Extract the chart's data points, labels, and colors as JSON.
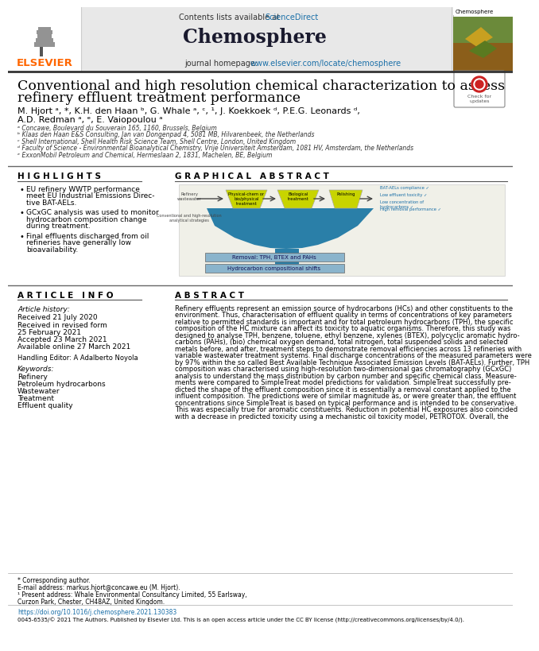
{
  "title": "Chemosphere",
  "contents_text": "Contents lists available at ",
  "sciencedirect_text": "ScienceDirect",
  "paper_title_line1": "Conventional and high resolution chemical characterization to assess",
  "paper_title_line2": "refinery effluent treatment performance",
  "author_line1": "M. Hjort ᵃ, *, K.H. den Haan ᵇ, G. Whale ᵃ, ᶜ, ¹, J. Koekkoek ᵈ, P.E.G. Leonards ᵈ,",
  "author_line2": "A.D. Redman ᵃ, ᵉ, E. Vaiopoulou ᵃ",
  "affil_a": "ᵃ Concawe, Boulevard du Souverain 165, 1160, Brussels, Belgium",
  "affil_b": "ᵇ Klaas den Haan E&S Consulting, Jan van Dongenpad 4, 5081 MB, Hilvarenbeek, the Netherlands",
  "affil_c": "ᶜ Shell International, Shell Health Risk Science Team, Shell Centre, London, United Kingdom",
  "affil_d": "ᵈ Faculty of Science - Environmental Bioanalytical Chemistry, Vrije Universiteit Amsterdam, 1081 HV, Amsterdam, the Netherlands",
  "affil_e": "ᵉ ExxonMobil Petroleum and Chemical, Hermeslaan 2, 1831, Machelen, BE, Belgium",
  "highlights_title": "H I G H L I G H T S",
  "highlight1": "EU refinery WWTP performance\nmeet EU Industrial Emissions Direc-\ntive BAT-AELs.",
  "highlight2": "GCxGC analysis was used to monitor\nhydrocarbon composition change\nduring treatment.",
  "highlight3": "Final effluents discharged from oil\nrefineries have generally low\nbioavailability.",
  "graphical_abstract_title": "G R A P H I C A L   A B S T R A C T",
  "article_info_title": "A R T I C L E   I N F O",
  "article_history": "Article history:",
  "received": "Received 21 July 2020",
  "received_revised1": "Received in revised form",
  "received_revised2": "25 February 2021",
  "accepted": "Accepted 23 March 2021",
  "available": "Available online 27 March 2021",
  "handling_editor": "Handling Editor: A Adalberto Noyola",
  "keywords_title": "Keywords:",
  "keywords": [
    "Refinery",
    "Petroleum hydrocarbons",
    "Wastewater",
    "Treatment",
    "Effluent quality"
  ],
  "abstract_title": "A B S T R A C T",
  "abstract_lines": [
    "Refinery effluents represent an emission source of hydrocarbons (HCs) and other constituents to the",
    "environment. Thus, characterisation of effluent quality in terms of concentrations of key parameters",
    "relative to permitted standards is important and for total petroleum hydrocarbons (TPH), the specific",
    "composition of the HC mixture can affect its toxicity to aquatic organisms. Therefore, this study was",
    "designed to analyse TPH, benzene, toluene, ethyl benzene, xylenes (BTEX), polycyclic aromatic hydro-",
    "carbons (PAHs), (bio) chemical oxygen demand, total nitrogen, total suspended solids and selected",
    "metals before, and after, treatment steps to demonstrate removal efficiencies across 13 refineries with",
    "variable wastewater treatment systems. Final discharge concentrations of the measured parameters were",
    "by 97% within the so called Best Available Technique Associated Emission Levels (BAT-AELs). Further, TPH",
    "composition was characterised using high-resolution two-dimensional gas chromatography (GCxGC)",
    "analysis to understand the mass distribution by carbon number and specific chemical class. Measure-",
    "ments were compared to SimpleTreat model predictions for validation. SimpleTreat successfully pre-",
    "dicted the shape of the effluent composition since it is essentially a removal constant applied to the",
    "influent composition. The predictions were of similar magnitude as, or were greater than, the effluent",
    "concentrations since SimpleTreat is based on typical performance and is intended to be conservative.",
    "This was especially true for aromatic constituents. Reduction in potential HC exposures also coincided",
    "with a decrease in predicted toxicity using a mechanistic oil toxicity model, PETROTOX. Overall, the"
  ],
  "corresponding_note": "* Corresponding author.",
  "email_note": "E-mail address: markus.hjort@concawe.eu (M. Hjort).",
  "present_note1": "¹ Present address: Whale Environmental Consultancy Limited, 55 Earlsway,",
  "present_note2": "Curzon Park, Chester, CH48AZ, United Kingdom.",
  "doi_text": "https://doi.org/10.1016/j.chemosphere.2021.130383",
  "license_text": "0045-6535/© 2021 The Authors. Published by Elsevier Ltd. This is an open access article under the CC BY license (http://creativecommons.org/licenses/by/4.0/).",
  "bg_header": "#e8e8e8",
  "color_elsevier": "#FF6600",
  "color_link": "#1a6fa8",
  "color_black": "#000000",
  "yell_green": "#c8d400",
  "teal": "#2a7fa8",
  "ga_bg": "#f0f0e8",
  "box_blue": "#8ab4cc"
}
